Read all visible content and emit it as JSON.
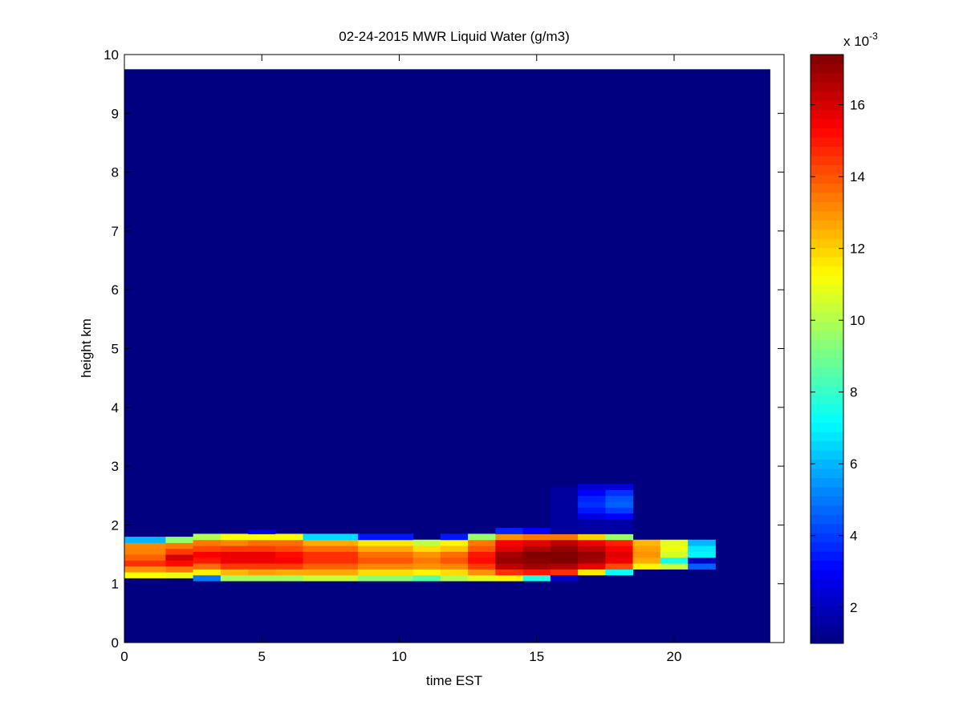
{
  "chart_data": {
    "type": "heatmap",
    "title": "02-24-2015 MWR Liquid Water (g/m3)",
    "xlabel": "time EST",
    "ylabel": "height km",
    "xlim": [
      0,
      24
    ],
    "ylim": [
      0,
      10
    ],
    "x_ticks": [
      0,
      5,
      10,
      15,
      20
    ],
    "y_ticks": [
      0,
      1,
      2,
      3,
      4,
      5,
      6,
      7,
      8,
      9,
      10
    ],
    "colorbar": {
      "colormap": "jet",
      "exponent_label": "x 10",
      "exponent_power": "-3",
      "range": [
        1.0,
        17.4
      ],
      "ticks": [
        2,
        4,
        6,
        8,
        10,
        12,
        14,
        16
      ]
    },
    "data_extent": {
      "x": [
        0,
        23.5
      ],
      "y": [
        0,
        9.75
      ]
    },
    "background_value": 1.0,
    "columns": [
      {
        "x0": 0.0,
        "x1": 1.5,
        "cells": [
          [
            1.1,
            1.2,
            11.2
          ],
          [
            1.2,
            1.3,
            13.0
          ],
          [
            1.3,
            1.4,
            14.6
          ],
          [
            1.4,
            1.5,
            13.8
          ],
          [
            1.5,
            1.6,
            13.3
          ],
          [
            1.6,
            1.7,
            13.2
          ],
          [
            1.7,
            1.8,
            6.0
          ]
        ]
      },
      {
        "x0": 1.5,
        "x1": 2.5,
        "cells": [
          [
            1.1,
            1.2,
            11.0
          ],
          [
            1.2,
            1.3,
            13.4
          ],
          [
            1.3,
            1.4,
            15.2
          ],
          [
            1.4,
            1.5,
            16.0
          ],
          [
            1.5,
            1.6,
            14.4
          ],
          [
            1.6,
            1.7,
            13.4
          ],
          [
            1.7,
            1.8,
            9.5
          ]
        ]
      },
      {
        "x0": 2.5,
        "x1": 3.5,
        "cells": [
          [
            1.05,
            1.15,
            5.0
          ],
          [
            1.15,
            1.25,
            11.5
          ],
          [
            1.25,
            1.35,
            13.6
          ],
          [
            1.35,
            1.45,
            15.0
          ],
          [
            1.45,
            1.55,
            15.4
          ],
          [
            1.55,
            1.65,
            14.2
          ],
          [
            1.65,
            1.75,
            13.4
          ],
          [
            1.75,
            1.85,
            10.0
          ]
        ]
      },
      {
        "x0": 3.5,
        "x1": 4.5,
        "cells": [
          [
            1.05,
            1.15,
            9.8
          ],
          [
            1.15,
            1.25,
            12.4
          ],
          [
            1.25,
            1.35,
            14.4
          ],
          [
            1.35,
            1.45,
            15.6
          ],
          [
            1.45,
            1.55,
            15.6
          ],
          [
            1.55,
            1.65,
            14.4
          ],
          [
            1.65,
            1.75,
            13.2
          ],
          [
            1.75,
            1.85,
            11.2
          ]
        ]
      },
      {
        "x0": 4.5,
        "x1": 5.5,
        "cells": [
          [
            1.05,
            1.15,
            9.8
          ],
          [
            1.15,
            1.25,
            12.8
          ],
          [
            1.25,
            1.35,
            14.4
          ],
          [
            1.35,
            1.45,
            15.6
          ],
          [
            1.45,
            1.55,
            15.6
          ],
          [
            1.55,
            1.65,
            14.4
          ],
          [
            1.65,
            1.75,
            13.6
          ],
          [
            1.75,
            1.85,
            11.2
          ],
          [
            1.85,
            1.92,
            2.6
          ]
        ]
      },
      {
        "x0": 5.5,
        "x1": 6.5,
        "cells": [
          [
            1.05,
            1.15,
            9.8
          ],
          [
            1.15,
            1.25,
            12.6
          ],
          [
            1.25,
            1.35,
            14.4
          ],
          [
            1.35,
            1.45,
            15.4
          ],
          [
            1.45,
            1.55,
            15.2
          ],
          [
            1.55,
            1.65,
            14.2
          ],
          [
            1.65,
            1.75,
            13.6
          ],
          [
            1.75,
            1.85,
            11.2
          ]
        ]
      },
      {
        "x0": 6.5,
        "x1": 8.5,
        "cells": [
          [
            1.05,
            1.15,
            10.4
          ],
          [
            1.15,
            1.25,
            12.6
          ],
          [
            1.25,
            1.35,
            13.8
          ],
          [
            1.35,
            1.45,
            14.6
          ],
          [
            1.45,
            1.55,
            14.6
          ],
          [
            1.55,
            1.65,
            13.6
          ],
          [
            1.65,
            1.75,
            12.6
          ],
          [
            1.75,
            1.85,
            6.6
          ]
        ]
      },
      {
        "x0": 8.5,
        "x1": 10.5,
        "cells": [
          [
            1.05,
            1.15,
            9.4
          ],
          [
            1.15,
            1.25,
            11.8
          ],
          [
            1.25,
            1.35,
            13.2
          ],
          [
            1.35,
            1.45,
            14.0
          ],
          [
            1.45,
            1.55,
            13.6
          ],
          [
            1.55,
            1.65,
            12.6
          ],
          [
            1.65,
            1.75,
            11.6
          ],
          [
            1.75,
            1.85,
            3.4
          ]
        ]
      },
      {
        "x0": 10.5,
        "x1": 11.5,
        "cells": [
          [
            1.05,
            1.15,
            8.6
          ],
          [
            1.15,
            1.25,
            11.4
          ],
          [
            1.25,
            1.35,
            13.0
          ],
          [
            1.35,
            1.45,
            13.4
          ],
          [
            1.45,
            1.55,
            13.0
          ],
          [
            1.55,
            1.65,
            11.8
          ],
          [
            1.65,
            1.75,
            10.2
          ]
        ]
      },
      {
        "x0": 11.5,
        "x1": 12.5,
        "cells": [
          [
            1.05,
            1.15,
            10.0
          ],
          [
            1.15,
            1.25,
            11.8
          ],
          [
            1.25,
            1.35,
            13.2
          ],
          [
            1.35,
            1.45,
            14.0
          ],
          [
            1.45,
            1.55,
            13.6
          ],
          [
            1.55,
            1.65,
            12.2
          ],
          [
            1.65,
            1.75,
            11.4
          ],
          [
            1.75,
            1.85,
            3.4
          ]
        ]
      },
      {
        "x0": 12.5,
        "x1": 13.5,
        "cells": [
          [
            1.05,
            1.15,
            10.8
          ],
          [
            1.15,
            1.25,
            13.0
          ],
          [
            1.25,
            1.35,
            14.4
          ],
          [
            1.35,
            1.45,
            15.2
          ],
          [
            1.45,
            1.55,
            15.0
          ],
          [
            1.55,
            1.65,
            14.0
          ],
          [
            1.65,
            1.75,
            13.4
          ],
          [
            1.75,
            1.85,
            9.6
          ]
        ]
      },
      {
        "x0": 13.5,
        "x1": 14.5,
        "cells": [
          [
            1.05,
            1.15,
            11.4
          ],
          [
            1.15,
            1.25,
            14.6
          ],
          [
            1.25,
            1.35,
            16.4
          ],
          [
            1.35,
            1.45,
            17.0
          ],
          [
            1.45,
            1.55,
            16.8
          ],
          [
            1.55,
            1.65,
            15.8
          ],
          [
            1.65,
            1.75,
            15.4
          ],
          [
            1.75,
            1.85,
            13.0
          ],
          [
            1.85,
            1.95,
            3.6
          ]
        ]
      },
      {
        "x0": 14.5,
        "x1": 15.5,
        "cells": [
          [
            1.05,
            1.15,
            7.6
          ],
          [
            1.15,
            1.25,
            15.0
          ],
          [
            1.25,
            1.35,
            16.8
          ],
          [
            1.35,
            1.45,
            17.2
          ],
          [
            1.45,
            1.55,
            17.4
          ],
          [
            1.55,
            1.65,
            16.6
          ],
          [
            1.65,
            1.75,
            15.8
          ],
          [
            1.75,
            1.85,
            13.4
          ],
          [
            1.85,
            1.95,
            3.0
          ]
        ]
      },
      {
        "x0": 15.5,
        "x1": 16.5,
        "cells": [
          [
            1.05,
            1.15,
            2.2
          ],
          [
            1.15,
            1.25,
            14.6
          ],
          [
            1.25,
            1.35,
            16.6
          ],
          [
            1.35,
            1.45,
            17.4
          ],
          [
            1.45,
            1.55,
            17.4
          ],
          [
            1.55,
            1.65,
            17.0
          ],
          [
            1.65,
            1.75,
            16.4
          ],
          [
            1.75,
            1.85,
            13.4
          ],
          [
            1.85,
            2.65,
            1.5
          ]
        ]
      },
      {
        "x0": 16.5,
        "x1": 17.5,
        "cells": [
          [
            1.15,
            1.25,
            11.6
          ],
          [
            1.25,
            1.35,
            15.6
          ],
          [
            1.35,
            1.45,
            16.8
          ],
          [
            1.45,
            1.55,
            17.0
          ],
          [
            1.55,
            1.65,
            16.4
          ],
          [
            1.65,
            1.75,
            15.6
          ],
          [
            1.75,
            1.85,
            12.0
          ],
          [
            1.85,
            2.1,
            1.6
          ],
          [
            2.1,
            2.2,
            2.6
          ],
          [
            2.2,
            2.3,
            3.4
          ],
          [
            2.3,
            2.4,
            3.8
          ],
          [
            2.4,
            2.5,
            3.6
          ],
          [
            2.5,
            2.6,
            3.0
          ],
          [
            2.6,
            2.7,
            2.4
          ]
        ]
      },
      {
        "x0": 17.5,
        "x1": 18.5,
        "cells": [
          [
            1.15,
            1.25,
            7.2
          ],
          [
            1.25,
            1.35,
            14.2
          ],
          [
            1.35,
            1.45,
            15.6
          ],
          [
            1.45,
            1.55,
            15.8
          ],
          [
            1.55,
            1.65,
            15.4
          ],
          [
            1.65,
            1.75,
            14.8
          ],
          [
            1.75,
            1.85,
            9.6
          ],
          [
            1.85,
            2.1,
            1.6
          ],
          [
            2.1,
            2.2,
            3.0
          ],
          [
            2.2,
            2.3,
            4.0
          ],
          [
            2.3,
            2.4,
            4.6
          ],
          [
            2.4,
            2.5,
            4.4
          ],
          [
            2.5,
            2.6,
            3.8
          ],
          [
            2.6,
            2.7,
            2.6
          ]
        ]
      },
      {
        "x0": 18.5,
        "x1": 19.5,
        "cells": [
          [
            1.25,
            1.35,
            11.4
          ],
          [
            1.35,
            1.45,
            12.6
          ],
          [
            1.45,
            1.55,
            13.0
          ],
          [
            1.55,
            1.65,
            12.8
          ],
          [
            1.65,
            1.75,
            12.4
          ]
        ]
      },
      {
        "x0": 19.5,
        "x1": 20.5,
        "cells": [
          [
            1.25,
            1.35,
            10.4
          ],
          [
            1.35,
            1.45,
            7.4
          ],
          [
            1.45,
            1.55,
            10.6
          ],
          [
            1.55,
            1.65,
            11.0
          ],
          [
            1.65,
            1.75,
            10.8
          ]
        ]
      },
      {
        "x0": 20.5,
        "x1": 21.5,
        "cells": [
          [
            1.25,
            1.35,
            4.6
          ],
          [
            1.35,
            1.45,
            2.0
          ],
          [
            1.45,
            1.55,
            7.0
          ],
          [
            1.55,
            1.65,
            6.8
          ],
          [
            1.65,
            1.75,
            6.0
          ]
        ]
      }
    ]
  }
}
